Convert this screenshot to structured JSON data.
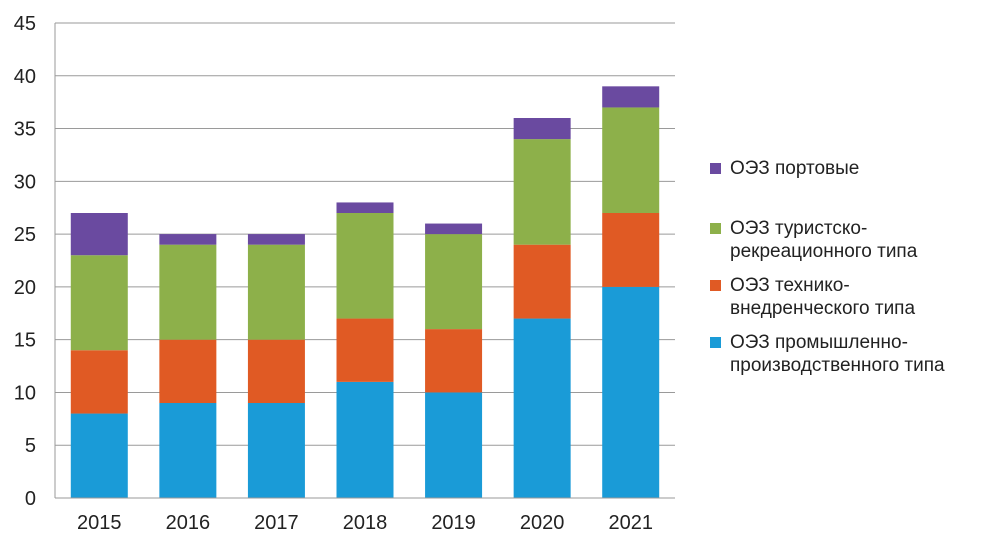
{
  "chart_data": {
    "type": "bar",
    "stacked": true,
    "title": "",
    "xlabel": "",
    "ylabel": "",
    "ylim": [
      0,
      45
    ],
    "yticks": [
      0,
      5,
      10,
      15,
      20,
      25,
      30,
      35,
      40,
      45
    ],
    "grid": true,
    "legend_position": "right",
    "categories": [
      "2015",
      "2016",
      "2017",
      "2018",
      "2019",
      "2020",
      "2021"
    ],
    "series": [
      {
        "name": "ОЭЗ промышленно-производственного типа",
        "legend_lines": [
          "ОЭЗ промышленно-",
          "производственного типа"
        ],
        "color": "#1a9bd7",
        "values": [
          8,
          9,
          9,
          11,
          10,
          17,
          20
        ]
      },
      {
        "name": "ОЭЗ технико-внедренческого типа",
        "legend_lines": [
          "ОЭЗ технико-",
          "внедренческого типа"
        ],
        "color": "#e05a24",
        "values": [
          6,
          6,
          6,
          6,
          6,
          7,
          7
        ]
      },
      {
        "name": "ОЭЗ туристско-рекреационного типа",
        "legend_lines": [
          "ОЭЗ туристско-",
          "рекреационного типа"
        ],
        "color": "#8db04a",
        "values": [
          9,
          9,
          9,
          10,
          9,
          10,
          10
        ]
      },
      {
        "name": "ОЭЗ портовые",
        "legend_lines": [
          "ОЭЗ портовые"
        ],
        "color": "#6a4aa0",
        "values": [
          4,
          1,
          1,
          1,
          1,
          2,
          2
        ]
      }
    ],
    "legend_order": [
      3,
      2,
      1,
      0
    ]
  }
}
